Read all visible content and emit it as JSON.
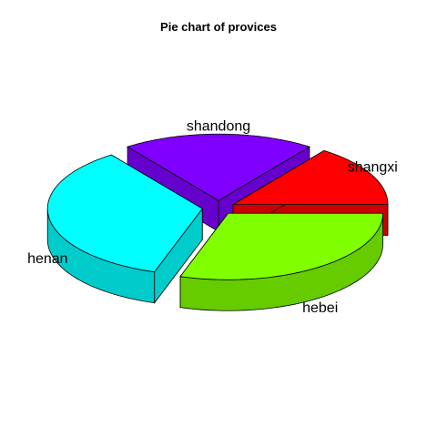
{
  "chart_data": {
    "type": "pie",
    "title": "Pie chart of provices",
    "categories": [
      "shangxi",
      "shandong",
      "henan",
      "hebei"
    ],
    "values": [
      15,
      20,
      35,
      30
    ],
    "explode": 0.15,
    "colors": {
      "shangxi": {
        "top": "#ff0000",
        "side": "#cc0000"
      },
      "shandong": {
        "top": "#8000ff",
        "side": "#6600cc"
      },
      "henan": {
        "top": "#00ffff",
        "side": "#00cccc"
      },
      "hebei": {
        "top": "#80ff00",
        "side": "#66cc00"
      }
    }
  }
}
